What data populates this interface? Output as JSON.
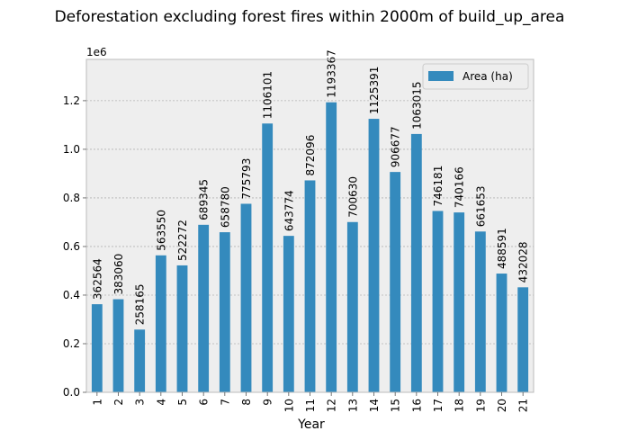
{
  "chart_data": {
    "type": "bar",
    "title": "Deforestation excluding forest fires within 2000m of build_up_area",
    "xlabel": "Year",
    "ylabel": "",
    "y_scale_label": "1e6",
    "y_scale_factor": 1000000,
    "ylim": [
      0,
      1370000
    ],
    "yticks": [
      0,
      200000,
      400000,
      600000,
      800000,
      1000000,
      1200000
    ],
    "ytick_labels": [
      "0.0",
      "0.2",
      "0.4",
      "0.6",
      "0.8",
      "1.0",
      "1.2"
    ],
    "categories": [
      "1",
      "2",
      "3",
      "4",
      "5",
      "6",
      "7",
      "8",
      "9",
      "10",
      "11",
      "12",
      "13",
      "14",
      "15",
      "16",
      "17",
      "18",
      "19",
      "20",
      "21"
    ],
    "series": [
      {
        "name": "Area (ha)",
        "color": "#348abd",
        "values": [
          362564,
          383060,
          258165,
          563550,
          522272,
          689345,
          658780,
          775793,
          1106101,
          643774,
          872096,
          1193367,
          700630,
          1125391,
          906677,
          1063015,
          746181,
          740166,
          661653,
          488591,
          432028
        ]
      }
    ],
    "grid": true,
    "legend": "top-right",
    "colors": {
      "plot_bg": "#eeeeee",
      "grid": "#b2b2b2",
      "frame": "#bcbcbc"
    }
  }
}
